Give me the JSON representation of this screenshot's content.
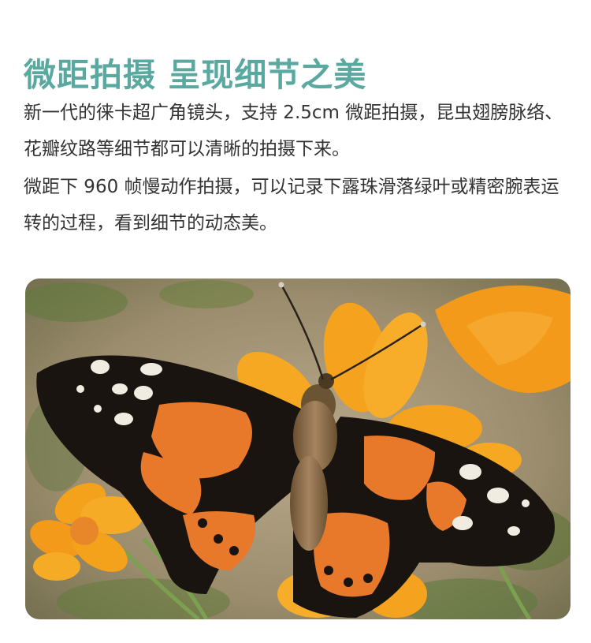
{
  "heading": "微距拍摄 呈现细节之美",
  "paragraph_1": "新一代的徕卡超广角镜头，支持 2.5cm 微距拍摄，昆虫翅膀脉络、花瓣纹路等细节都可以清晰的拍摄下来。",
  "paragraph_2": "微距下 960 帧慢动作拍摄，可以记录下露珠滑落绿叶或精密腕表运转的过程，看到细节的动态美。",
  "colors": {
    "heading": "#5aa9a0",
    "body_text": "#333333",
    "flower_orange": "#f5a520",
    "wing_orange": "#e8782a",
    "wing_black": "#1a1410"
  }
}
